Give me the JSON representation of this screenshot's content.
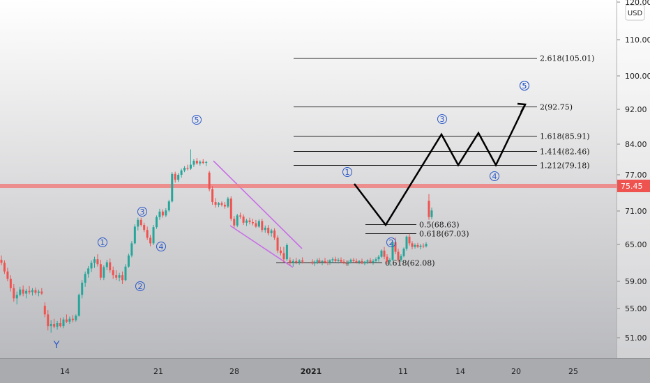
{
  "chart_data": {
    "type": "candlestick",
    "currency": "USD",
    "y_axis_ticks": [
      "120.00",
      "110.00",
      "100.00",
      "92.00",
      "84.00",
      "77.00",
      "71.00",
      "65.00",
      "59.00",
      "55.00",
      "51.00"
    ],
    "x_axis_ticks": [
      "14",
      "21",
      "28",
      "2021",
      "11",
      "14",
      "20",
      "25"
    ],
    "price_line": {
      "value": "75.45",
      "color": "#f08080"
    },
    "colors": {
      "up": "#26a69a",
      "down": "#ef5350",
      "channel": "#c86ee6",
      "wave_label": "#2b58c8"
    },
    "fib_levels": [
      {
        "label": "2.618(105.01)",
        "value": 105.01
      },
      {
        "label": "2(92.75)",
        "value": 92.75
      },
      {
        "label": "1.618(85.91)",
        "value": 85.91
      },
      {
        "label": "1.414(82.46)",
        "value": 82.46
      },
      {
        "label": "1.212(79.18)",
        "value": 79.18
      },
      {
        "label": "0.5(68.63)",
        "value": 68.63
      },
      {
        "label": "0.618(67.03)",
        "value": 67.03
      },
      {
        "label": "0.618(62.08)",
        "value": 62.08
      }
    ],
    "wave_labels": [
      "1",
      "2",
      "3",
      "4",
      "5",
      "5",
      "1",
      "2",
      "3",
      "4",
      "5",
      "Y"
    ],
    "candles_ohlc": [
      [
        62.5,
        63.2,
        61.6,
        62.0
      ],
      [
        62.0,
        62.4,
        60.2,
        60.6
      ],
      [
        60.6,
        61.2,
        59.0,
        59.4
      ],
      [
        59.4,
        60.0,
        57.5,
        58.0
      ],
      [
        58.0,
        58.6,
        56.0,
        56.5
      ],
      [
        56.5,
        57.5,
        55.6,
        57.0
      ],
      [
        57.0,
        58.2,
        56.8,
        57.8
      ],
      [
        57.8,
        58.4,
        56.8,
        57.2
      ],
      [
        57.2,
        57.9,
        56.5,
        57.6
      ],
      [
        57.6,
        58.3,
        57.1,
        57.4
      ],
      [
        57.4,
        58.0,
        56.9,
        57.7
      ],
      [
        57.7,
        58.1,
        57.0,
        57.3
      ],
      [
        57.3,
        57.8,
        56.8,
        57.5
      ],
      [
        57.5,
        58.0,
        57.0,
        57.2
      ],
      [
        55.4,
        55.9,
        53.8,
        54.2
      ],
      [
        54.2,
        54.8,
        52.0,
        52.6
      ],
      [
        52.6,
        53.4,
        51.7,
        52.9
      ],
      [
        52.9,
        53.6,
        52.3,
        52.5
      ],
      [
        52.5,
        53.3,
        52.1,
        53.0
      ],
      [
        53.0,
        53.7,
        52.4,
        52.6
      ],
      [
        52.6,
        53.8,
        52.3,
        53.5
      ],
      [
        53.5,
        54.2,
        53.0,
        53.2
      ],
      [
        53.2,
        53.9,
        52.9,
        53.6
      ],
      [
        53.6,
        54.1,
        53.1,
        53.4
      ],
      [
        53.4,
        54.2,
        53.2,
        54.0
      ],
      [
        54.0,
        57.2,
        53.9,
        57.0
      ],
      [
        57.0,
        59.2,
        56.5,
        58.8
      ],
      [
        58.8,
        60.6,
        58.2,
        60.2
      ],
      [
        60.2,
        61.5,
        59.6,
        61.1
      ],
      [
        61.1,
        62.4,
        60.5,
        62.0
      ],
      [
        62.0,
        63.0,
        61.2,
        62.6
      ],
      [
        62.6,
        63.4,
        61.4,
        61.8
      ],
      [
        61.8,
        62.5,
        59.2,
        59.6
      ],
      [
        59.6,
        61.6,
        59.2,
        61.3
      ],
      [
        61.3,
        62.5,
        60.8,
        62.1
      ],
      [
        62.1,
        62.7,
        60.4,
        60.8
      ],
      [
        60.8,
        61.4,
        59.4,
        60.0
      ],
      [
        60.0,
        60.8,
        59.2,
        59.6
      ],
      [
        59.6,
        60.4,
        59.0,
        60.0
      ],
      [
        60.0,
        60.6,
        58.6,
        59.2
      ],
      [
        59.2,
        61.8,
        59.0,
        61.4
      ],
      [
        61.4,
        63.5,
        61.2,
        63.2
      ],
      [
        63.2,
        65.6,
        62.9,
        65.2
      ],
      [
        65.2,
        68.6,
        65.0,
        68.2
      ],
      [
        68.2,
        69.8,
        67.5,
        69.4
      ],
      [
        69.4,
        69.8,
        68.2,
        68.5
      ],
      [
        68.5,
        68.9,
        67.2,
        67.6
      ],
      [
        67.6,
        68.2,
        65.8,
        66.2
      ],
      [
        66.2,
        66.7,
        64.7,
        65.2
      ],
      [
        65.2,
        68.5,
        64.9,
        68.1
      ],
      [
        68.1,
        70.2,
        67.8,
        69.9
      ],
      [
        69.9,
        71.4,
        69.4,
        70.9
      ],
      [
        70.9,
        71.3,
        69.8,
        70.2
      ],
      [
        70.2,
        71.5,
        69.9,
        71.1
      ],
      [
        71.1,
        73.0,
        70.8,
        72.7
      ],
      [
        72.7,
        77.6,
        72.5,
        77.2
      ],
      [
        77.2,
        77.7,
        75.9,
        76.3
      ],
      [
        76.3,
        77.4,
        76.0,
        77.0
      ],
      [
        77.0,
        78.4,
        76.6,
        78.0
      ],
      [
        78.0,
        79.0,
        77.6,
        78.6
      ],
      [
        78.6,
        79.3,
        78.0,
        78.4
      ],
      [
        78.4,
        82.8,
        78.1,
        79.3
      ],
      [
        79.3,
        80.6,
        78.8,
        80.2
      ],
      [
        80.2,
        80.8,
        79.3,
        79.6
      ],
      [
        79.6,
        80.3,
        79.1,
        80.0
      ],
      [
        80.0,
        80.6,
        79.4,
        79.7
      ],
      [
        79.7,
        80.2,
        79.0,
        79.9
      ],
      [
        77.5,
        77.9,
        74.5,
        74.9
      ],
      [
        74.9,
        75.4,
        72.1,
        72.6
      ],
      [
        72.6,
        73.3,
        71.6,
        72.1
      ],
      [
        72.1,
        72.6,
        71.7,
        72.4
      ],
      [
        72.4,
        72.7,
        71.8,
        72.1
      ],
      [
        72.1,
        72.6,
        71.4,
        71.8
      ],
      [
        71.8,
        73.5,
        71.5,
        73.2
      ],
      [
        73.2,
        73.6,
        69.2,
        69.6
      ],
      [
        69.6,
        70.1,
        68.0,
        68.4
      ],
      [
        68.4,
        70.5,
        68.1,
        70.2
      ],
      [
        70.2,
        70.7,
        69.6,
        70.0
      ],
      [
        70.0,
        70.4,
        68.5,
        68.9
      ],
      [
        68.9,
        69.6,
        68.3,
        69.3
      ],
      [
        69.3,
        69.8,
        68.6,
        69.0
      ],
      [
        69.0,
        69.6,
        68.4,
        68.8
      ],
      [
        68.8,
        69.4,
        68.0,
        68.2
      ],
      [
        68.2,
        69.5,
        68.0,
        69.2
      ],
      [
        69.2,
        69.6,
        67.2,
        67.6
      ],
      [
        67.6,
        68.4,
        67.1,
        68.0
      ],
      [
        68.0,
        68.5,
        66.6,
        67.0
      ],
      [
        67.0,
        67.8,
        66.4,
        67.5
      ],
      [
        67.5,
        67.9,
        65.8,
        66.2
      ],
      [
        66.2,
        66.6,
        63.6,
        64.0
      ],
      [
        64.0,
        64.6,
        63.2,
        63.6
      ],
      [
        63.6,
        64.6,
        62.1,
        62.6
      ],
      [
        62.6,
        65.2,
        62.3,
        64.9
      ],
      [
        62.4,
        62.9,
        61.6,
        62.0
      ],
      [
        62.0,
        62.6,
        61.4,
        62.3
      ],
      [
        62.3,
        62.8,
        61.8,
        62.1
      ],
      [
        62.1,
        62.6,
        61.7,
        62.4
      ],
      [
        62.4,
        62.9,
        61.9,
        62.2
      ],
      [
        62.2,
        62.6,
        61.7,
        61.9
      ],
      [
        61.9,
        62.4,
        61.5,
        62.2
      ],
      [
        62.2,
        62.7,
        61.8,
        62.4
      ],
      [
        62.4,
        62.8,
        61.9,
        62.1
      ],
      [
        62.1,
        62.5,
        61.6,
        62.3
      ],
      [
        62.3,
        62.8,
        61.9,
        62.1
      ],
      [
        62.1,
        62.5,
        61.6,
        62.0
      ],
      [
        62.0,
        62.6,
        61.7,
        62.4
      ],
      [
        62.4,
        62.9,
        62.0,
        62.6
      ],
      [
        62.6,
        63.0,
        62.1,
        62.3
      ],
      [
        62.3,
        62.8,
        61.9,
        62.5
      ],
      [
        62.5,
        62.9,
        62.0,
        62.2
      ],
      [
        62.2,
        62.6,
        61.8,
        62.0
      ],
      [
        62.0,
        62.4,
        61.5,
        61.8
      ],
      [
        61.8,
        62.4,
        61.5,
        62.2
      ],
      [
        62.2,
        62.7,
        61.9,
        62.5
      ],
      [
        62.5,
        62.8,
        62.0,
        62.3
      ],
      [
        62.3,
        62.7,
        61.9,
        62.1
      ],
      [
        62.1,
        62.5,
        61.8,
        62.3
      ],
      [
        62.3,
        62.7,
        61.8,
        61.9
      ],
      [
        61.9,
        62.3,
        61.6,
        62.2
      ],
      [
        62.2,
        62.6,
        61.8,
        62.4
      ],
      [
        62.4,
        62.8,
        61.9,
        62.1
      ],
      [
        62.1,
        62.6,
        61.7,
        62.3
      ],
      [
        62.3,
        62.9,
        62.0,
        62.6
      ],
      [
        62.6,
        63.3,
        62.2,
        63.0
      ],
      [
        63.0,
        64.2,
        62.8,
        64.0
      ],
      [
        64.0,
        64.6,
        62.6,
        63.0
      ],
      [
        63.0,
        63.4,
        61.8,
        62.2
      ],
      [
        62.2,
        62.8,
        61.6,
        62.5
      ],
      [
        62.5,
        65.6,
        62.3,
        65.4
      ],
      [
        65.4,
        66.2,
        63.4,
        63.8
      ],
      [
        63.8,
        64.3,
        62.1,
        62.5
      ],
      [
        62.5,
        63.4,
        62.2,
        63.1
      ],
      [
        63.1,
        64.5,
        62.9,
        64.3
      ],
      [
        64.3,
        66.6,
        64.0,
        66.4
      ],
      [
        66.4,
        66.9,
        64.8,
        65.2
      ],
      [
        65.2,
        65.6,
        64.2,
        64.6
      ],
      [
        64.6,
        65.2,
        64.3,
        64.9
      ],
      [
        64.9,
        65.3,
        64.4,
        64.6
      ],
      [
        64.6,
        65.1,
        64.2,
        64.8
      ],
      [
        64.8,
        65.2,
        64.4,
        64.7
      ],
      [
        64.7,
        65.4,
        64.5,
        65.1
      ],
      [
        72.8,
        74.0,
        69.4,
        69.9
      ],
      [
        69.9,
        71.6,
        69.5,
        71.1
      ]
    ]
  }
}
